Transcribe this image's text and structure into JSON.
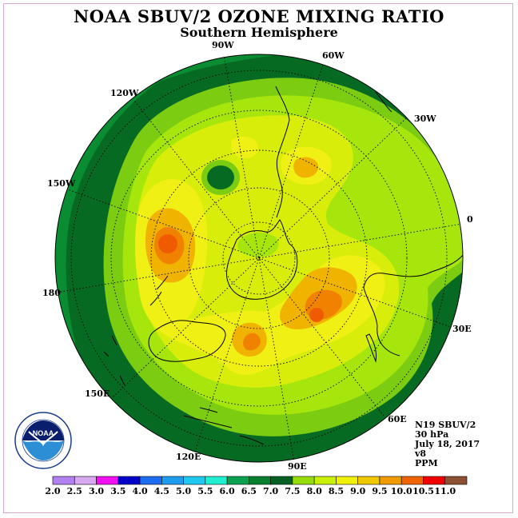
{
  "header": {
    "title": "NOAA SBUV/2 OZONE MIXING RATIO",
    "subtitle": "Southern Hemisphere"
  },
  "map": {
    "longitude_labels": [
      "90W",
      "60W",
      "30W",
      "0",
      "30E",
      "60E",
      "90E",
      "120E",
      "150E",
      "180",
      "150W",
      "120W"
    ]
  },
  "info": {
    "lines": [
      "N19 SBUV/2",
      "30 hPa",
      "July 18, 2017",
      "v8",
      "PPM"
    ]
  },
  "logo": {
    "text": "NOAA"
  },
  "colorbar": {
    "ticks": [
      "2.0",
      "2.5",
      "3.0",
      "3.5",
      "4.0",
      "4.5",
      "5.0",
      "5.5",
      "6.0",
      "6.5",
      "7.0",
      "7.5",
      "8.0",
      "8.5",
      "9.0",
      "9.5",
      "10.0",
      "10.5",
      "11.0"
    ],
    "colors": [
      "#b280f0",
      "#d8a8f0",
      "#f010f0",
      "#0000c8",
      "#1e6cf0",
      "#1e9cf0",
      "#1ec8f0",
      "#20f0d0",
      "#0aa050",
      "#088030",
      "#066024",
      "#96dc0a",
      "#c8f00a",
      "#f0f00a",
      "#f0c800",
      "#f09c00",
      "#f06400",
      "#f00000",
      "#8c5032"
    ]
  },
  "palette": {
    "c65": "#0a8c32",
    "c70": "#066a22",
    "c75": "#7ccc12",
    "c80": "#a6e60c",
    "c85": "#d8ee0a",
    "c90": "#f0f014",
    "c95": "#f0b400",
    "c100": "#f08200",
    "c105": "#f05a00"
  }
}
